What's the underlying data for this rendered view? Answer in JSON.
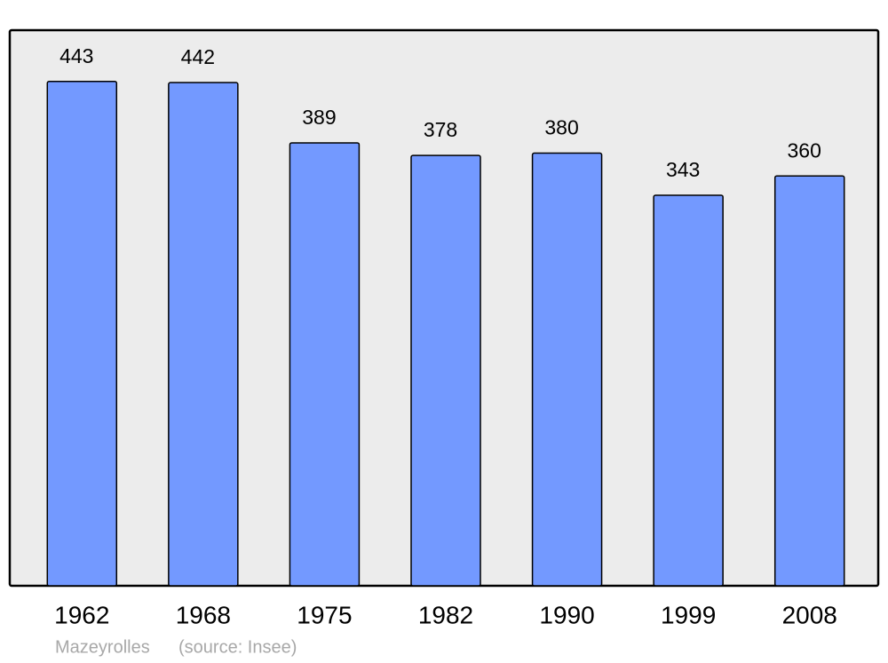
{
  "chart_data": {
    "type": "bar",
    "categories": [
      "1962",
      "1968",
      "1975",
      "1982",
      "1990",
      "1999",
      "2008"
    ],
    "values": [
      443,
      442,
      389,
      378,
      380,
      343,
      360
    ],
    "color": "#7399ff",
    "ylim": [
      0,
      488
    ],
    "caption": "Mazeyrolles",
    "source": "(source: Insee)"
  }
}
